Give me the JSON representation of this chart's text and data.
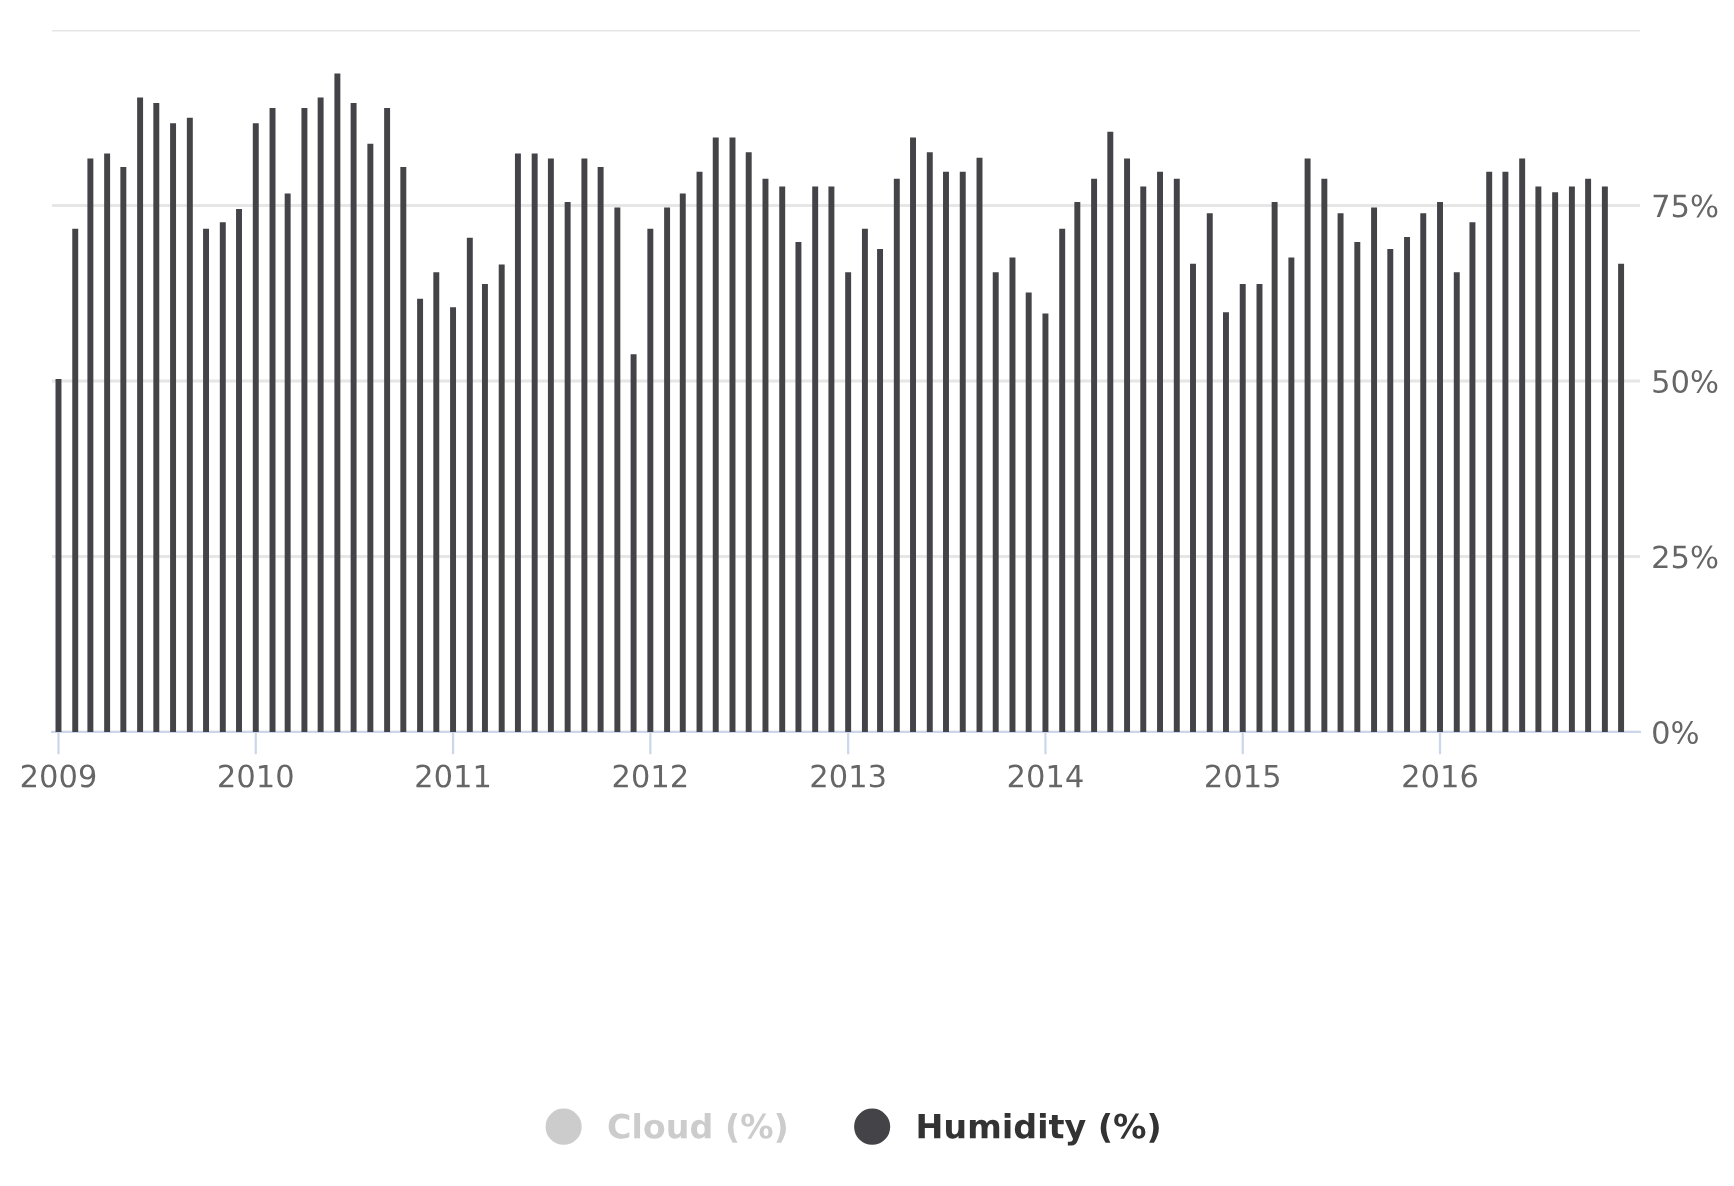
{
  "chart_data": {
    "type": "bar",
    "x": [
      "2009-01",
      "2009-02",
      "2009-03",
      "2009-04",
      "2009-05",
      "2009-06",
      "2009-07",
      "2009-08",
      "2009-09",
      "2009-10",
      "2009-11",
      "2009-12",
      "2010-01",
      "2010-02",
      "2010-03",
      "2010-04",
      "2010-05",
      "2010-06",
      "2010-07",
      "2010-08",
      "2010-09",
      "2010-10",
      "2010-11",
      "2010-12",
      "2011-01",
      "2011-02",
      "2011-03",
      "2011-04",
      "2011-05",
      "2011-06",
      "2011-07",
      "2011-08",
      "2011-09",
      "2011-10",
      "2011-11",
      "2011-12",
      "2012-01",
      "2012-02",
      "2012-03",
      "2012-04",
      "2012-05",
      "2012-06",
      "2012-07",
      "2012-08",
      "2012-09",
      "2012-10",
      "2012-11",
      "2012-12",
      "2013-01",
      "2013-02",
      "2013-03",
      "2013-04",
      "2013-05",
      "2013-06",
      "2013-07",
      "2013-08",
      "2013-09",
      "2013-10",
      "2013-11",
      "2013-12",
      "2014-01",
      "2014-02",
      "2014-03",
      "2014-04",
      "2014-05",
      "2014-06",
      "2014-07",
      "2014-08",
      "2014-09",
      "2014-10",
      "2014-11",
      "2014-12",
      "2015-01",
      "2015-02",
      "2015-03",
      "2015-04",
      "2015-05",
      "2015-06",
      "2015-07",
      "2015-08",
      "2015-09",
      "2015-10",
      "2015-11",
      "2015-12",
      "2016-01",
      "2016-02",
      "2016-03",
      "2016-04",
      "2016-05",
      "2016-06",
      "2016-07",
      "2016-08",
      "2016-09",
      "2016-10",
      "2016-11",
      "2016-12"
    ],
    "series": [
      {
        "name": "Cloud (%)",
        "color": "#cccccc",
        "values": [
          null,
          null,
          null,
          null,
          null,
          null,
          null,
          null,
          null,
          null,
          null,
          null,
          null,
          null,
          null,
          null,
          null,
          null,
          null,
          null,
          null,
          null,
          null,
          null,
          null,
          null,
          null,
          null,
          null,
          null,
          null,
          null,
          null,
          null,
          null,
          null,
          null,
          null,
          null,
          null,
          null,
          null,
          null,
          null,
          null,
          null,
          null,
          null,
          null,
          null,
          null,
          null,
          null,
          null,
          null,
          null,
          null,
          null,
          null,
          null,
          null,
          null,
          null,
          null,
          null,
          null,
          null,
          null,
          null,
          null,
          null,
          null,
          null,
          null,
          null,
          null,
          null,
          null,
          null,
          null,
          null,
          null,
          null,
          null,
          null,
          null,
          null,
          null,
          null,
          null,
          null,
          null,
          null,
          null,
          null,
          null
        ]
      },
      {
        "name": "Humidity (%)",
        "color": "#434348",
        "values": [
          50.3,
          71.7,
          81.7,
          82.4,
          80.5,
          90.4,
          89.6,
          86.7,
          87.5,
          71.7,
          72.6,
          74.5,
          86.7,
          88.9,
          76.7,
          88.9,
          90.4,
          93.8,
          89.6,
          83.8,
          88.9,
          80.5,
          61.7,
          65.5,
          60.5,
          70.4,
          63.8,
          66.6,
          82.4,
          82.4,
          81.7,
          75.5,
          81.7,
          80.5,
          74.7,
          53.8,
          71.7,
          74.7,
          76.7,
          79.8,
          84.7,
          84.7,
          82.6,
          78.8,
          77.7,
          69.8,
          77.7,
          77.7,
          65.5,
          71.7,
          68.8,
          78.8,
          84.7,
          82.6,
          79.8,
          79.8,
          81.8,
          65.5,
          67.6,
          62.6,
          59.6,
          71.7,
          75.5,
          78.8,
          85.5,
          81.7,
          77.7,
          79.8,
          78.8,
          66.7,
          73.9,
          59.8,
          63.8,
          63.8,
          75.5,
          67.6,
          81.7,
          78.8,
          73.9,
          69.8,
          74.7,
          68.8,
          70.5,
          73.9,
          75.5,
          65.5,
          72.6,
          79.8,
          79.8,
          81.7,
          77.7,
          76.9,
          77.7,
          78.8,
          77.7,
          66.7
        ]
      }
    ],
    "xlim": [
      "2008-12-20",
      "2017-01-05"
    ],
    "xticks": [
      {
        "value": "2009-01-01",
        "label": "2009"
      },
      {
        "value": "2010-01-01",
        "label": "2010"
      },
      {
        "value": "2011-01-01",
        "label": "2011"
      },
      {
        "value": "2012-01-01",
        "label": "2012"
      },
      {
        "value": "2013-01-01",
        "label": "2013"
      },
      {
        "value": "2014-01-01",
        "label": "2014"
      },
      {
        "value": "2015-01-01",
        "label": "2015"
      },
      {
        "value": "2016-01-01",
        "label": "2016"
      }
    ],
    "ylim": [
      0,
      100
    ],
    "yticks": [
      {
        "value": 0,
        "label": "0%"
      },
      {
        "value": 25,
        "label": "25%"
      },
      {
        "value": 50,
        "label": "50%"
      },
      {
        "value": 75,
        "label": "75%"
      },
      {
        "value": 100,
        "label": null
      }
    ],
    "grid": "y",
    "legend": "bottom"
  }
}
